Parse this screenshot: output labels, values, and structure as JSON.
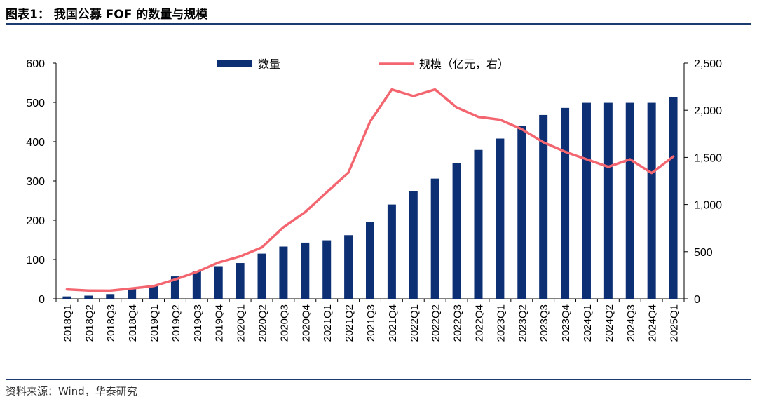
{
  "figure": {
    "title": "图表1：  我国公募 FOF 的数量与规模",
    "source": "资料来源：Wind，华泰研究"
  },
  "chart_data": {
    "type": "bar+line",
    "categories": [
      "2018Q1",
      "2018Q2",
      "2018Q3",
      "2018Q4",
      "2019Q1",
      "2019Q2",
      "2019Q3",
      "2019Q4",
      "2020Q1",
      "2020Q2",
      "2020Q3",
      "2020Q4",
      "2021Q1",
      "2021Q2",
      "2021Q3",
      "2021Q4",
      "2022Q1",
      "2022Q2",
      "2022Q3",
      "2022Q4",
      "2023Q1",
      "2023Q2",
      "2023Q3",
      "2023Q4",
      "2024Q1",
      "2024Q2",
      "2024Q3",
      "2024Q4",
      "2025Q1"
    ],
    "series": [
      {
        "name": "数量",
        "kind": "bar",
        "axis": "left",
        "color": "#0d2f74",
        "values": [
          6,
          8,
          12,
          25,
          35,
          57,
          70,
          83,
          91,
          115,
          133,
          143,
          149,
          162,
          195,
          240,
          274,
          306,
          346,
          379,
          408,
          441,
          468,
          486,
          499,
          499,
          499,
          499,
          513
        ]
      },
      {
        "name": "规模（亿元，右）",
        "kind": "line",
        "axis": "right",
        "color": "#f36670",
        "values": [
          100,
          88,
          86,
          110,
          135,
          205,
          285,
          385,
          450,
          545,
          760,
          920,
          1130,
          1340,
          1880,
          2220,
          2150,
          2220,
          2030,
          1930,
          1900,
          1800,
          1660,
          1560,
          1480,
          1400,
          1480,
          1335,
          1510
        ]
      }
    ],
    "y_left": {
      "min": 0,
      "max": 600,
      "ticks": [
        0,
        100,
        200,
        300,
        400,
        500,
        600
      ],
      "tick_labels": [
        "0",
        "100",
        "200",
        "300",
        "400",
        "500",
        "600"
      ]
    },
    "y_right": {
      "min": 0,
      "max": 2500,
      "ticks": [
        0,
        500,
        1000,
        1500,
        2000,
        2500
      ],
      "tick_labels": [
        "0",
        "500",
        "1,000",
        "1,500",
        "2,000",
        "2,500"
      ]
    },
    "legend_position": "top",
    "grid": false
  }
}
